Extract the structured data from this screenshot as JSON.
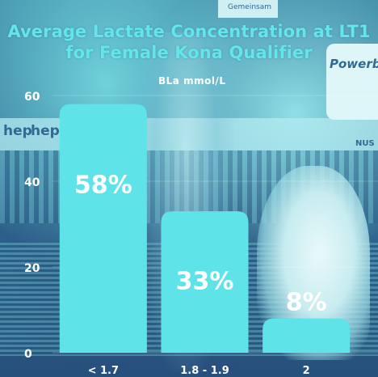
{
  "background": {
    "banner_text_left": "hep",
    "banner_text_left2": "hep",
    "sign_top": "Gemeinsam",
    "sign_right": "Powerba",
    "sign_right2": "NUS",
    "accent_color": "#5ee3e8",
    "text_color": "#ffffff"
  },
  "chart_data": {
    "type": "bar",
    "title": "Average Lactate Concentration at LT1 for Female Kona Qualifier",
    "title_lines": [
      "Average Lactate Concentration at LT1",
      "for Female Kona Qualifier"
    ],
    "unit_label": "BLa mmol/L",
    "categories": [
      "< 1.7",
      "1.8 - 1.9",
      "2"
    ],
    "values": [
      58,
      33,
      8
    ],
    "value_labels": [
      "58%",
      "33%",
      "8%"
    ],
    "ylim": [
      0,
      60
    ],
    "yticks": [
      0,
      20,
      40,
      60
    ],
    "bar_color": "#5ee3e8",
    "grid": true,
    "legend": "none"
  }
}
